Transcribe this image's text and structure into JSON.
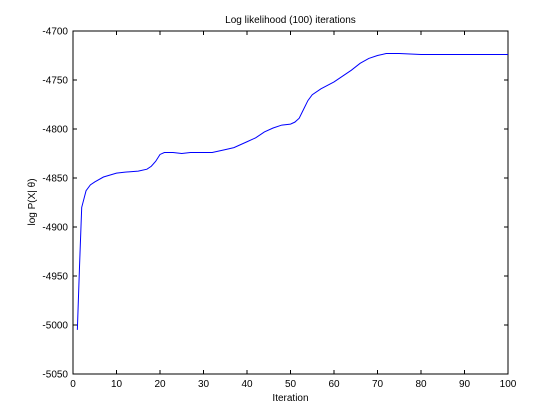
{
  "chart_data": {
    "type": "line",
    "title": "Log likelihood (100) iterations",
    "xlabel": "Iteration",
    "ylabel": "log P(X| θ)",
    "xlim": [
      0,
      100
    ],
    "ylim": [
      -5050,
      -4700
    ],
    "xticks": [
      0,
      10,
      20,
      30,
      40,
      50,
      60,
      70,
      80,
      90,
      100
    ],
    "yticks": [
      -4700,
      -4750,
      -4800,
      -4850,
      -4900,
      -4950,
      -5000,
      -5050
    ],
    "grid": false,
    "line_color": "#0000ff",
    "series": [
      {
        "x": [
          1,
          1.5,
          2,
          3,
          4,
          5,
          7,
          10,
          12,
          15,
          17,
          18,
          19,
          20,
          21,
          23,
          25,
          27,
          30,
          32,
          35,
          37,
          40,
          42,
          44,
          46,
          48,
          50,
          51,
          52,
          53,
          54,
          55,
          57,
          60,
          62,
          64,
          66,
          68,
          70,
          72,
          75,
          80,
          90,
          100
        ],
        "y": [
          -5005,
          -4940,
          -4880,
          -4863,
          -4857,
          -4854,
          -4849,
          -4845,
          -4844,
          -4843,
          -4841,
          -4838,
          -4833,
          -4826,
          -4824,
          -4824,
          -4825,
          -4824,
          -4824,
          -4824,
          -4821,
          -4819,
          -4813,
          -4809,
          -4803,
          -4799,
          -4796,
          -4795,
          -4793,
          -4789,
          -4780,
          -4771,
          -4765,
          -4759,
          -4752,
          -4746,
          -4740,
          -4733,
          -4728,
          -4725,
          -4723,
          -4723,
          -4724,
          -4724,
          -4724
        ]
      }
    ]
  }
}
